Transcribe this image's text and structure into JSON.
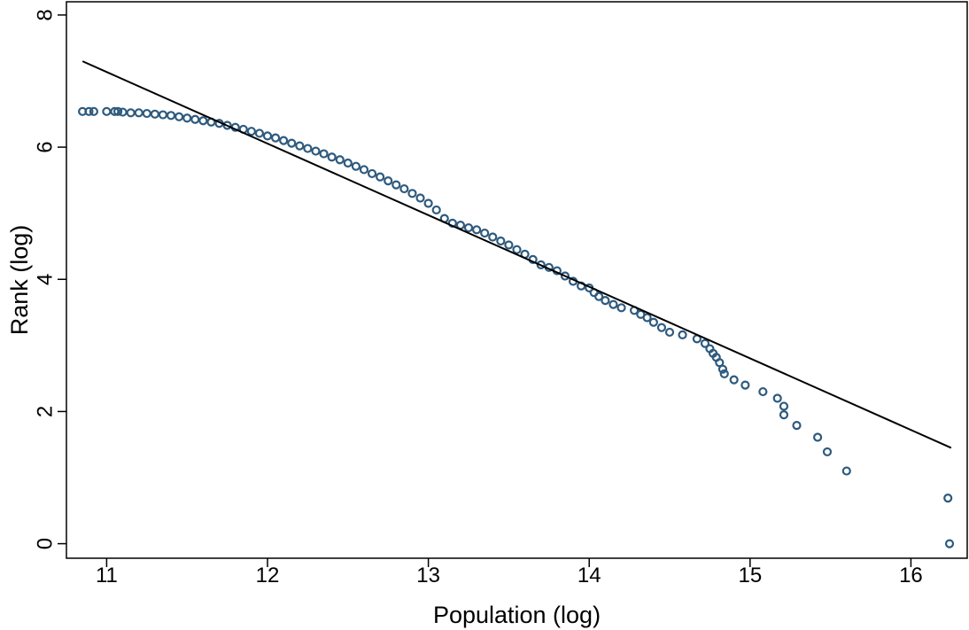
{
  "chart_data": {
    "type": "scatter",
    "title": "",
    "xlabel": "Population (log)",
    "ylabel": "Rank (log)",
    "xlim": [
      10.75,
      16.35
    ],
    "ylim": [
      -0.22,
      8.2
    ],
    "xticks": [
      11,
      12,
      13,
      14,
      15,
      16
    ],
    "yticks": [
      0,
      2,
      4,
      6,
      8
    ],
    "grid": false,
    "legend": "none",
    "colors": {
      "marker": "#2e5a7e",
      "line": "#000000"
    },
    "fit_line": {
      "x": [
        10.85,
        16.25
      ],
      "y": [
        7.3,
        1.45
      ]
    },
    "series": [
      {
        "marker": "hollow-circle",
        "points": [
          [
            10.85,
            6.54
          ],
          [
            10.89,
            6.54
          ],
          [
            10.92,
            6.54
          ],
          [
            11.0,
            6.54
          ],
          [
            11.05,
            6.54
          ],
          [
            11.07,
            6.54
          ],
          [
            11.1,
            6.53
          ],
          [
            11.15,
            6.52
          ],
          [
            11.2,
            6.52
          ],
          [
            11.25,
            6.51
          ],
          [
            11.3,
            6.5
          ],
          [
            11.35,
            6.49
          ],
          [
            11.4,
            6.48
          ],
          [
            11.45,
            6.46
          ],
          [
            11.5,
            6.44
          ],
          [
            11.55,
            6.42
          ],
          [
            11.6,
            6.4
          ],
          [
            11.65,
            6.38
          ],
          [
            11.7,
            6.36
          ],
          [
            11.75,
            6.33
          ],
          [
            11.8,
            6.3
          ],
          [
            11.85,
            6.27
          ],
          [
            11.9,
            6.24
          ],
          [
            11.95,
            6.21
          ],
          [
            12.0,
            6.17
          ],
          [
            12.05,
            6.14
          ],
          [
            12.1,
            6.1
          ],
          [
            12.15,
            6.06
          ],
          [
            12.2,
            6.02
          ],
          [
            12.25,
            5.98
          ],
          [
            12.3,
            5.94
          ],
          [
            12.35,
            5.9
          ],
          [
            12.4,
            5.85
          ],
          [
            12.45,
            5.81
          ],
          [
            12.5,
            5.76
          ],
          [
            12.55,
            5.71
          ],
          [
            12.6,
            5.66
          ],
          [
            12.65,
            5.6
          ],
          [
            12.7,
            5.55
          ],
          [
            12.75,
            5.49
          ],
          [
            12.8,
            5.43
          ],
          [
            12.85,
            5.37
          ],
          [
            12.9,
            5.3
          ],
          [
            12.95,
            5.23
          ],
          [
            13.0,
            5.15
          ],
          [
            13.05,
            5.05
          ],
          [
            13.1,
            4.92
          ],
          [
            13.15,
            4.85
          ],
          [
            13.2,
            4.82
          ],
          [
            13.25,
            4.78
          ],
          [
            13.3,
            4.75
          ],
          [
            13.35,
            4.7
          ],
          [
            13.4,
            4.64
          ],
          [
            13.45,
            4.58
          ],
          [
            13.5,
            4.52
          ],
          [
            13.55,
            4.45
          ],
          [
            13.6,
            4.38
          ],
          [
            13.65,
            4.3
          ],
          [
            13.7,
            4.22
          ],
          [
            13.75,
            4.18
          ],
          [
            13.8,
            4.13
          ],
          [
            13.85,
            4.05
          ],
          [
            13.9,
            3.97
          ],
          [
            13.95,
            3.9
          ],
          [
            14.0,
            3.87
          ],
          [
            14.03,
            3.8
          ],
          [
            14.06,
            3.74
          ],
          [
            14.1,
            3.68
          ],
          [
            14.15,
            3.62
          ],
          [
            14.2,
            3.57
          ],
          [
            14.28,
            3.53
          ],
          [
            14.32,
            3.47
          ],
          [
            14.36,
            3.42
          ],
          [
            14.4,
            3.35
          ],
          [
            14.45,
            3.27
          ],
          [
            14.5,
            3.2
          ],
          [
            14.58,
            3.16
          ],
          [
            14.67,
            3.1
          ],
          [
            14.72,
            3.03
          ],
          [
            14.75,
            2.95
          ],
          [
            14.77,
            2.88
          ],
          [
            14.79,
            2.82
          ],
          [
            14.81,
            2.74
          ],
          [
            14.83,
            2.64
          ],
          [
            14.84,
            2.57
          ],
          [
            14.9,
            2.48
          ],
          [
            14.97,
            2.4
          ],
          [
            15.08,
            2.3
          ],
          [
            15.17,
            2.2
          ],
          [
            15.21,
            2.08
          ],
          [
            15.21,
            1.95
          ],
          [
            15.29,
            1.79
          ],
          [
            15.42,
            1.61
          ],
          [
            15.48,
            1.39
          ],
          [
            15.6,
            1.1
          ],
          [
            16.23,
            0.69
          ],
          [
            16.24,
            0.0
          ]
        ]
      }
    ]
  }
}
